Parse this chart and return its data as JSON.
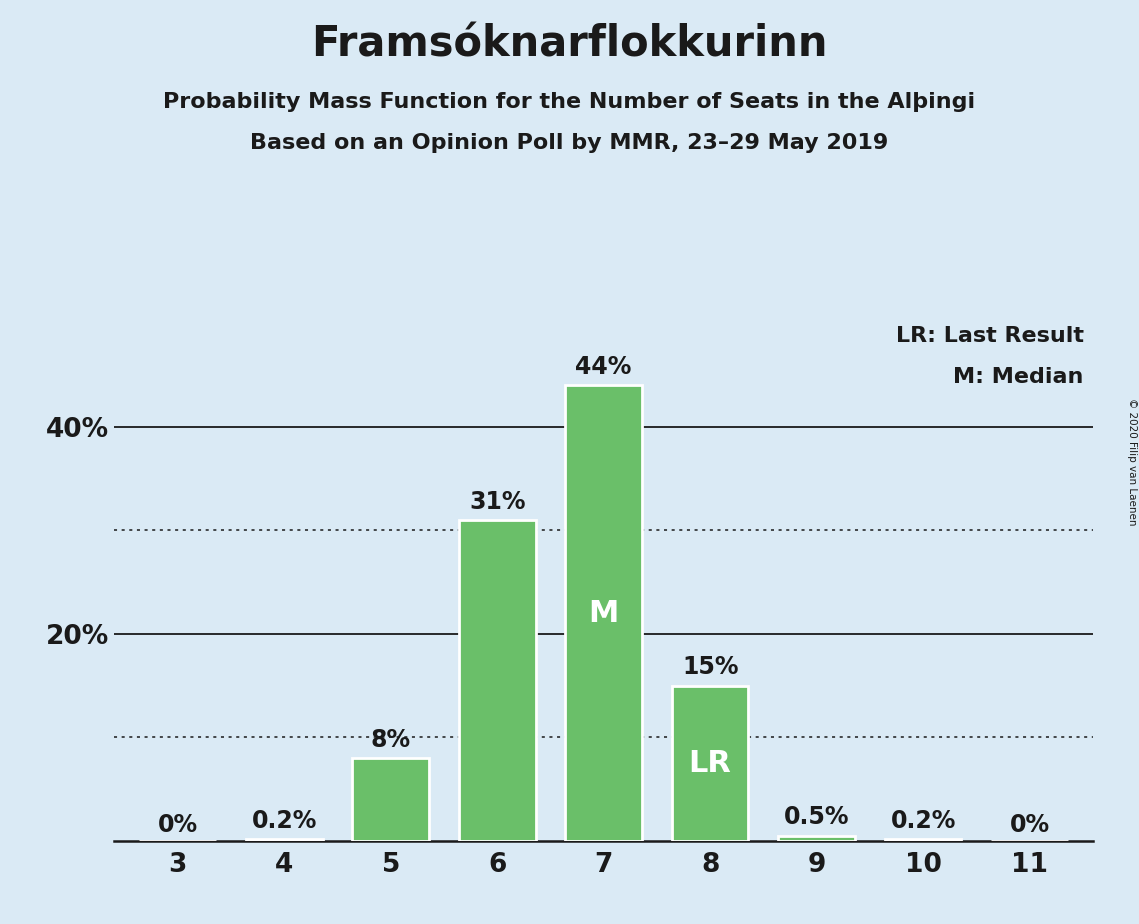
{
  "title": "Framsóknarflokkurinn",
  "subtitle1": "Probability Mass Function for the Number of Seats in the Alþingi",
  "subtitle2": "Based on an Opinion Poll by MMR, 23–29 May 2019",
  "categories": [
    3,
    4,
    5,
    6,
    7,
    8,
    9,
    10,
    11
  ],
  "values": [
    0.0,
    0.2,
    8.0,
    31.0,
    44.0,
    15.0,
    0.5,
    0.2,
    0.0
  ],
  "bar_color": "#6abf69",
  "bar_edge_color": "#ffffff",
  "background_color": "#daeaf5",
  "ylim_max": 50,
  "solid_gridlines": [
    20,
    40
  ],
  "dotted_gridlines": [
    10,
    30
  ],
  "median_bar": 7,
  "lr_bar": 8,
  "median_label": "M",
  "lr_label": "LR",
  "legend_text1": "LR: Last Result",
  "legend_text2": "M: Median",
  "copyright_text": "© 2020 Filip van Laenen",
  "title_fontsize": 30,
  "subtitle_fontsize": 16,
  "tick_fontsize": 19,
  "bar_label_fontsize": 17,
  "inner_label_fontsize": 22,
  "legend_fontsize": 16
}
